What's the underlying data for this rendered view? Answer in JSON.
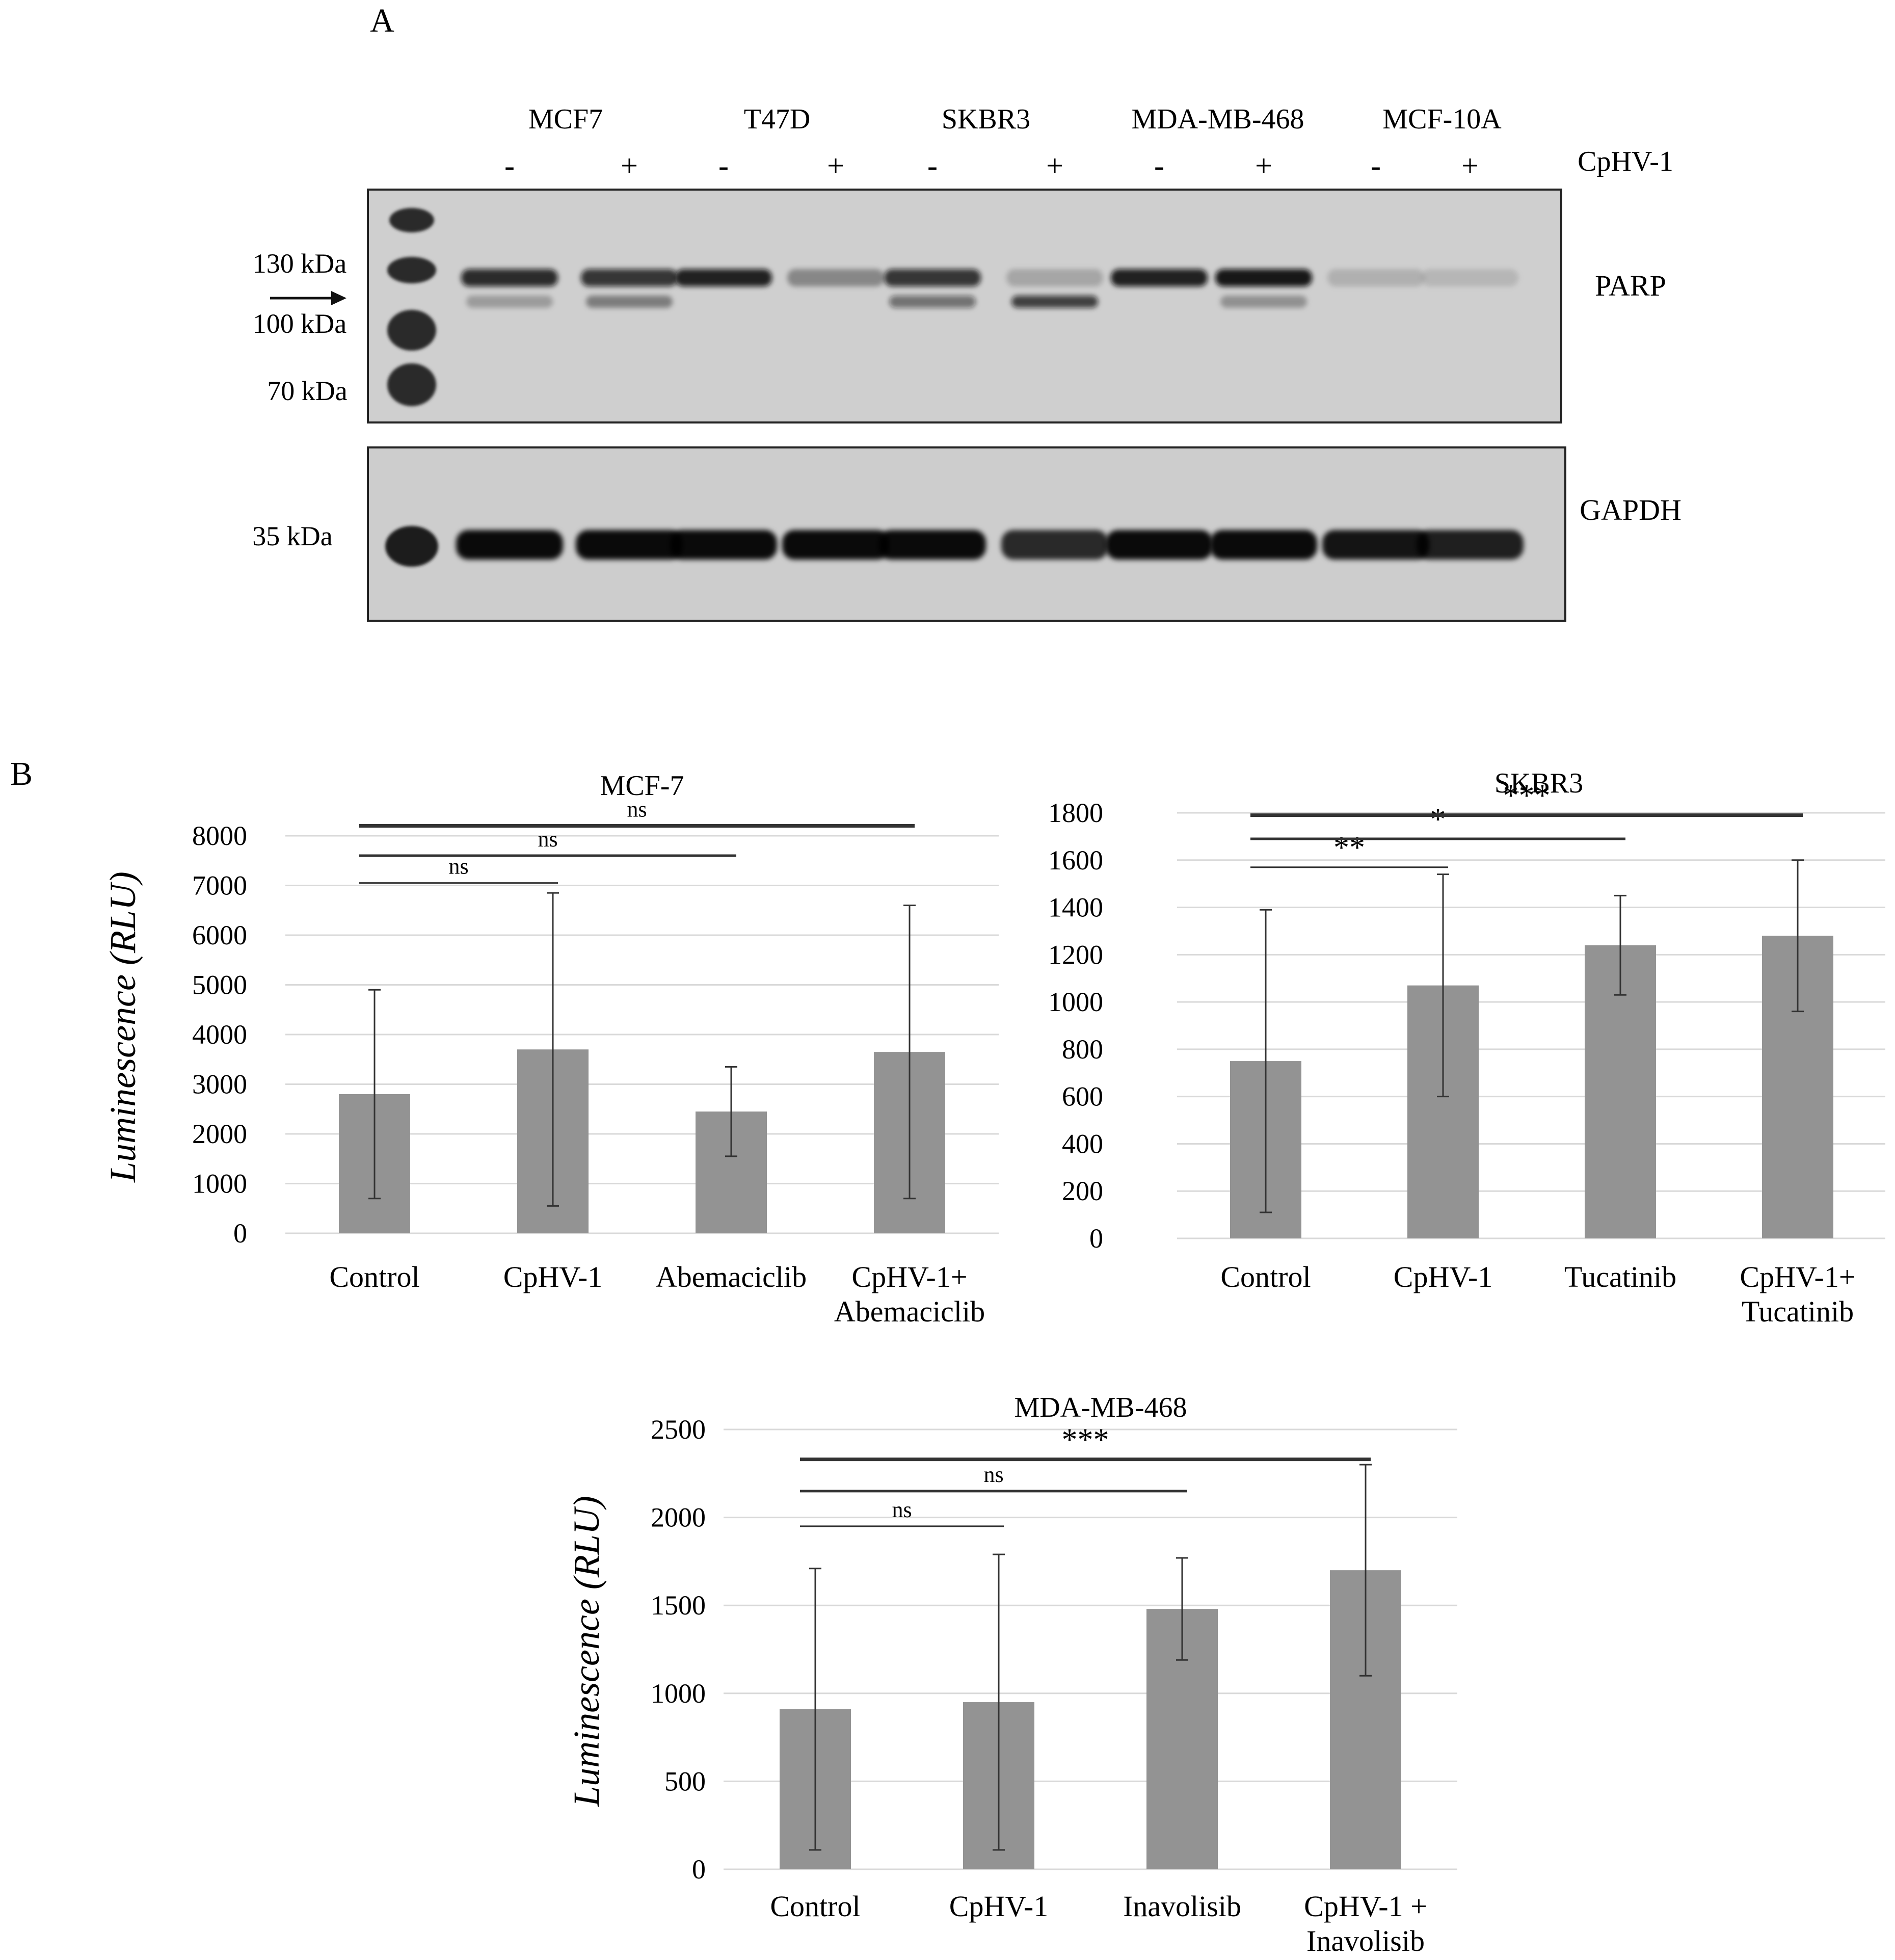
{
  "panel_labels": {
    "a": "A",
    "b": "B"
  },
  "blot": {
    "cell_lines": [
      "MCF7",
      "T47D",
      "SKBR3",
      "MDA-MB-468",
      "MCF-10A"
    ],
    "treatment_signs": [
      "-",
      "+",
      "-",
      "+",
      "-",
      "+",
      "-",
      "+",
      "-",
      "+"
    ],
    "treatment_label": "CpHV-1",
    "markers": [
      "130 kDa",
      "100 kDa",
      "70 kDa",
      "35 kDa"
    ],
    "proteins": [
      "PARP",
      "GAPDH"
    ],
    "parp_full_intensity": [
      0.85,
      0.8,
      0.9,
      0.35,
      0.8,
      0.2,
      0.9,
      0.95,
      0.15,
      0.12
    ],
    "parp_cleaved_intensity": [
      0.25,
      0.4,
      0.0,
      0.0,
      0.5,
      0.75,
      0.0,
      0.3,
      0.0,
      0.0
    ],
    "gapdh_intensity": [
      0.95,
      0.95,
      0.95,
      0.95,
      0.95,
      0.8,
      0.95,
      0.95,
      0.9,
      0.85
    ]
  },
  "chart_data": [
    {
      "type": "bar",
      "title": "MCF-7",
      "ylabel": "Luminescence (RLU)",
      "categories": [
        "Control",
        "CpHV-1",
        "Abemaciclib",
        "CpHV-1+\nAbemaciclib"
      ],
      "values": [
        2800,
        3700,
        2450,
        3650
      ],
      "errors": [
        2100,
        3150,
        900,
        2950
      ],
      "ylim": [
        0,
        8000
      ],
      "yticks": [
        0,
        1000,
        2000,
        3000,
        4000,
        5000,
        6000,
        7000,
        8000
      ],
      "grid": true,
      "significance": [
        {
          "from": 0,
          "to": 1,
          "label": "ns",
          "level": 7050
        },
        {
          "from": 0,
          "to": 2,
          "label": "ns",
          "level": 7600
        },
        {
          "from": 0,
          "to": 3,
          "label": "ns",
          "level": 8200
        }
      ]
    },
    {
      "type": "bar",
      "title": "SKBR3",
      "ylabel": "",
      "categories": [
        "Control",
        "CpHV-1",
        "Tucatinib",
        "CpHV-1+\nTucatinib"
      ],
      "values": [
        750,
        1070,
        1240,
        1280
      ],
      "errors": [
        640,
        470,
        210,
        320
      ],
      "ylim": [
        0,
        1800
      ],
      "yticks": [
        0,
        200,
        400,
        600,
        800,
        1000,
        1200,
        1400,
        1600,
        1800
      ],
      "grid": true,
      "significance": [
        {
          "from": 0,
          "to": 1,
          "label": "**",
          "level": 1570
        },
        {
          "from": 0,
          "to": 2,
          "label": "*",
          "level": 1690
        },
        {
          "from": 0,
          "to": 3,
          "label": "***",
          "level": 1790
        }
      ]
    },
    {
      "type": "bar",
      "title": "MDA-MB-468",
      "ylabel": "Luminescence (RLU)",
      "categories": [
        "Control",
        "CpHV-1",
        "Inavolisib",
        "CpHV-1 +\nInavolisib"
      ],
      "values": [
        910,
        950,
        1480,
        1700
      ],
      "errors": [
        800,
        840,
        290,
        600
      ],
      "ylim": [
        0,
        2500
      ],
      "yticks": [
        0,
        500,
        1000,
        1500,
        2000,
        2500
      ],
      "grid": true,
      "significance": [
        {
          "from": 0,
          "to": 1,
          "label": "ns",
          "level": 1950
        },
        {
          "from": 0,
          "to": 2,
          "label": "ns",
          "level": 2150
        },
        {
          "from": 0,
          "to": 3,
          "label": "***",
          "level": 2330
        }
      ]
    }
  ]
}
